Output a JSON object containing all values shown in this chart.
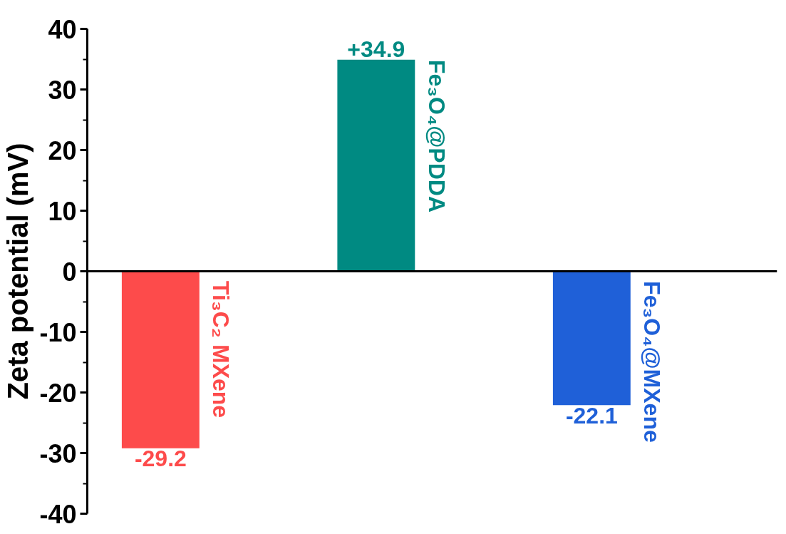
{
  "chart_data": {
    "type": "bar",
    "ylabel": "Zeta potential (mV)",
    "categories": [
      "Ti₃C₂ MXene",
      "Fe₃O₄@PDDA",
      "Fe₃O₄@MXene"
    ],
    "values": [
      -29.2,
      34.9,
      -22.1
    ],
    "colors": [
      "#fd4b4b",
      "#008a82",
      "#1f60d8"
    ],
    "value_labels": [
      "-29.2",
      "+34.9",
      "-22.1"
    ],
    "ylim": [
      -40,
      40
    ],
    "yticks": [
      -40,
      -30,
      -20,
      -10,
      0,
      10,
      20,
      30,
      40
    ],
    "tick_labels": "y",
    "grid": false
  }
}
